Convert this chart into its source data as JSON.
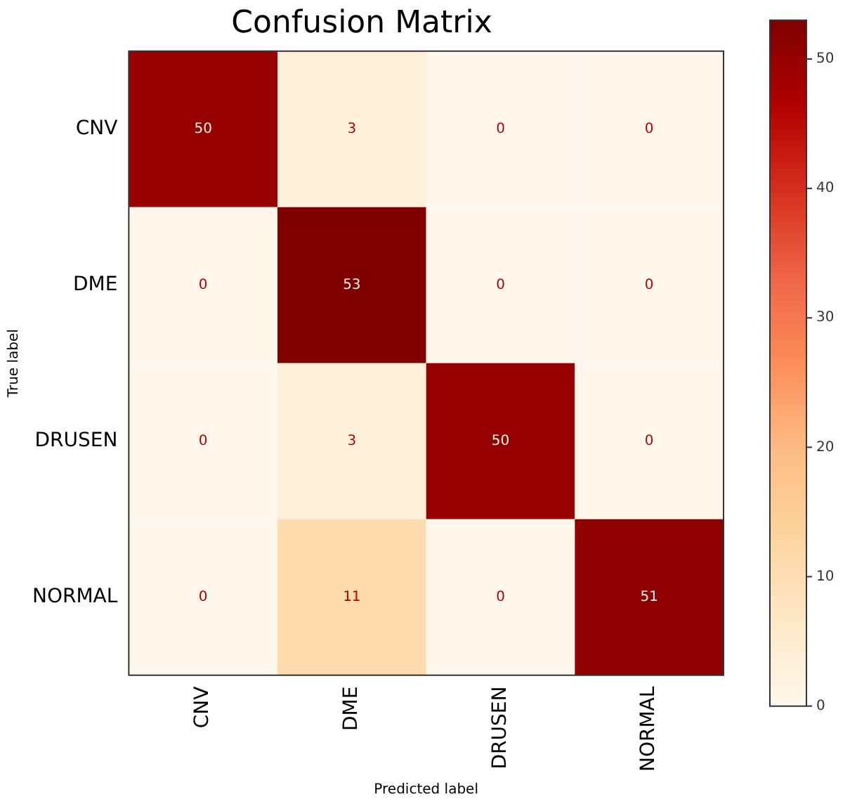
{
  "chart_data": {
    "type": "heatmap",
    "title": "Confusion Matrix",
    "xlabel": "Predicted label",
    "ylabel": "True label",
    "categories": [
      "CNV",
      "DME",
      "DRUSEN",
      "NORMAL"
    ],
    "y_categories": [
      "CNV",
      "DME",
      "DRUSEN",
      "NORMAL"
    ],
    "cells": [
      [
        50,
        3,
        0,
        0
      ],
      [
        0,
        53,
        0,
        0
      ],
      [
        0,
        3,
        50,
        0
      ],
      [
        0,
        11,
        0,
        51
      ]
    ],
    "clim": [
      0,
      53
    ],
    "cticks": [
      0,
      10,
      20,
      30,
      40,
      50
    ],
    "data_labels": true,
    "grid": false
  }
}
